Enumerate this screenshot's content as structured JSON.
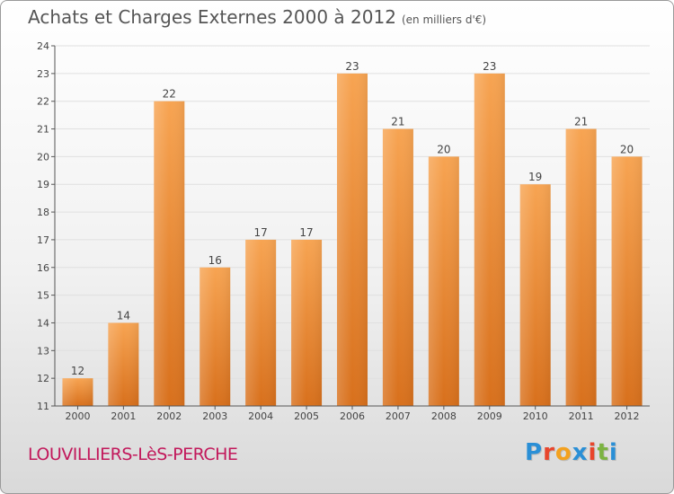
{
  "title": "Achats et Charges Externes 2000 à 2012",
  "subtitle": "(en milliers d'€)",
  "commune": "LOUVILLIERS-LèS-PERCHE",
  "brand": {
    "letters": [
      "P",
      "r",
      "o",
      "x",
      "i",
      "t",
      "i"
    ],
    "colors": [
      "#2a8fd6",
      "#e8452c",
      "#f3a11f",
      "#2a8fd6",
      "#e8452c",
      "#7cb342",
      "#2a8fd6"
    ]
  },
  "chart_data": {
    "type": "bar",
    "categories": [
      "2000",
      "2001",
      "2002",
      "2003",
      "2004",
      "2005",
      "2006",
      "2007",
      "2008",
      "2009",
      "2010",
      "2011",
      "2012"
    ],
    "values": [
      12,
      14,
      22,
      16,
      17,
      17,
      23,
      21,
      20,
      23,
      19,
      21,
      20
    ],
    "ylim": [
      11,
      24
    ],
    "yticks": [
      11,
      12,
      13,
      14,
      15,
      16,
      17,
      18,
      19,
      20,
      21,
      22,
      23,
      24
    ],
    "grid": true,
    "bar_color": "#f08c30"
  }
}
